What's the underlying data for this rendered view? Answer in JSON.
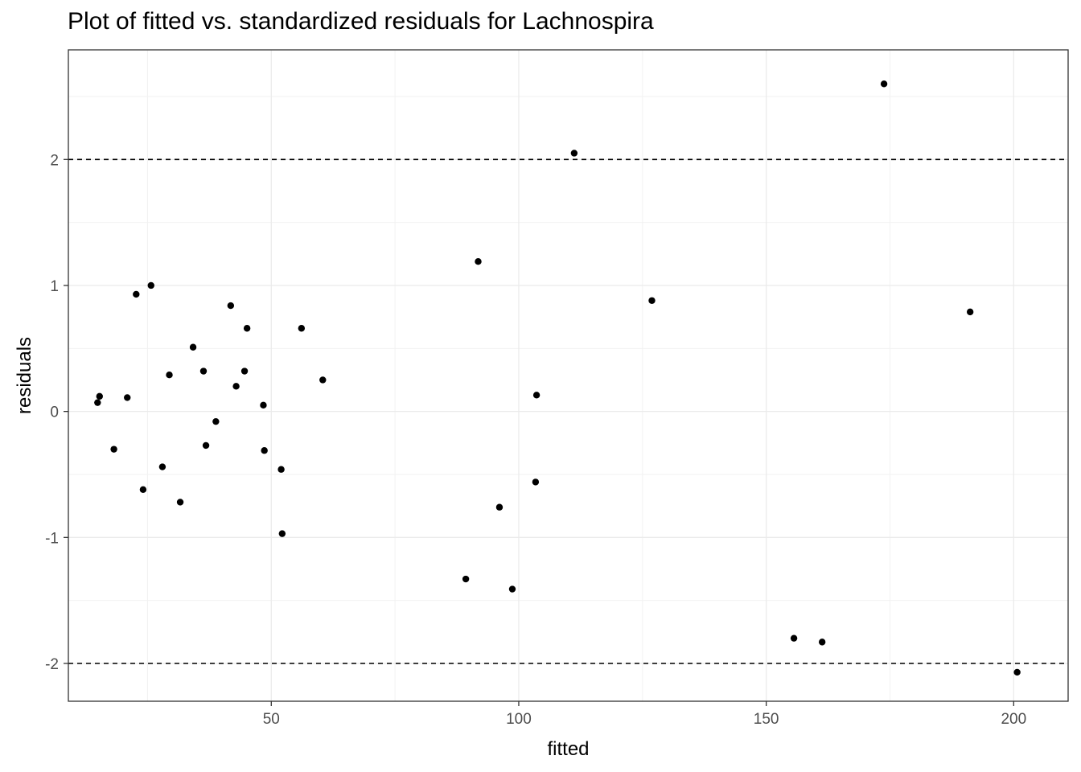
{
  "chart_data": {
    "type": "scatter",
    "title": "Plot of fitted vs. standardized residuals for Lachnospira",
    "xlabel": "fitted",
    "ylabel": "residuals",
    "xlim": [
      9,
      211
    ],
    "ylim": [
      -2.3,
      2.87
    ],
    "x_ticks": [
      50,
      100,
      150,
      200
    ],
    "x_tick_labels": [
      "50",
      "100",
      "150",
      "200"
    ],
    "y_ticks": [
      -2,
      -1,
      0,
      1,
      2
    ],
    "y_tick_labels": [
      "-2",
      "-1",
      "0",
      "1",
      "2"
    ],
    "reference_lines": [
      2,
      -2
    ],
    "grid": true,
    "point_color": "#000000",
    "points": [
      {
        "x": 14.9,
        "y": 0.07
      },
      {
        "x": 15.3,
        "y": 0.12
      },
      {
        "x": 18.2,
        "y": -0.3
      },
      {
        "x": 20.9,
        "y": 0.11
      },
      {
        "x": 22.7,
        "y": 0.93
      },
      {
        "x": 24.1,
        "y": -0.62
      },
      {
        "x": 25.7,
        "y": 1.0
      },
      {
        "x": 28.0,
        "y": -0.44
      },
      {
        "x": 29.4,
        "y": 0.29
      },
      {
        "x": 31.6,
        "y": -0.72
      },
      {
        "x": 34.2,
        "y": 0.51
      },
      {
        "x": 36.3,
        "y": 0.32
      },
      {
        "x": 36.8,
        "y": -0.27
      },
      {
        "x": 38.8,
        "y": -0.08
      },
      {
        "x": 41.8,
        "y": 0.84
      },
      {
        "x": 42.9,
        "y": 0.2
      },
      {
        "x": 44.6,
        "y": 0.32
      },
      {
        "x": 45.1,
        "y": 0.66
      },
      {
        "x": 48.4,
        "y": 0.05
      },
      {
        "x": 48.6,
        "y": -0.31
      },
      {
        "x": 52.0,
        "y": -0.46
      },
      {
        "x": 52.2,
        "y": -0.97
      },
      {
        "x": 56.1,
        "y": 0.66
      },
      {
        "x": 60.4,
        "y": 0.25
      },
      {
        "x": 89.3,
        "y": -1.33
      },
      {
        "x": 91.8,
        "y": 1.19
      },
      {
        "x": 96.1,
        "y": -0.76
      },
      {
        "x": 98.7,
        "y": -1.41
      },
      {
        "x": 103.4,
        "y": -0.56
      },
      {
        "x": 103.6,
        "y": 0.13
      },
      {
        "x": 111.2,
        "y": 2.05
      },
      {
        "x": 126.9,
        "y": 0.88
      },
      {
        "x": 155.6,
        "y": -1.8
      },
      {
        "x": 161.3,
        "y": -1.83
      },
      {
        "x": 173.8,
        "y": 2.6
      },
      {
        "x": 191.2,
        "y": 0.79
      },
      {
        "x": 200.7,
        "y": -2.07
      }
    ]
  }
}
